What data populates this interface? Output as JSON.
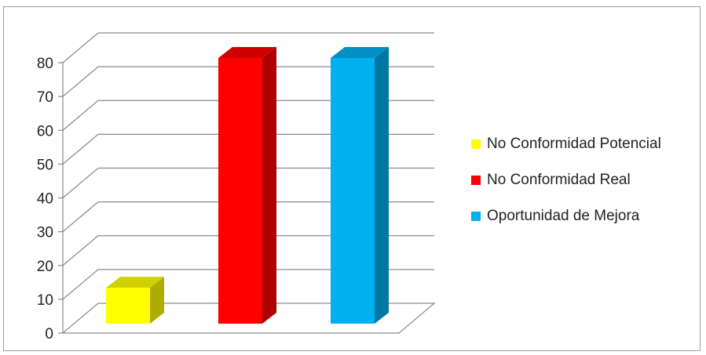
{
  "chart_data": {
    "type": "bar",
    "categories": [
      "No Conformidad Potencial",
      "No Conformidad Real",
      "Oportunidad de Mejora"
    ],
    "values": [
      12,
      80,
      80
    ],
    "colors": [
      "#ffff00",
      "#ff0000",
      "#00b0f0"
    ],
    "ylim": [
      0,
      80
    ],
    "yticks": [
      "0",
      "10",
      "20",
      "30",
      "40",
      "50",
      "60",
      "70",
      "80"
    ],
    "title": "",
    "xlabel": "",
    "ylabel": "",
    "grid": true,
    "legend_position": "right",
    "style": "3d-column"
  },
  "legend": {
    "items": [
      {
        "label": "No Conformidad Potencial",
        "color": "#ffff00"
      },
      {
        "label": "No Conformidad Real",
        "color": "#ff0000"
      },
      {
        "label": "Oportunidad de Mejora",
        "color": "#00b0f0"
      }
    ]
  }
}
